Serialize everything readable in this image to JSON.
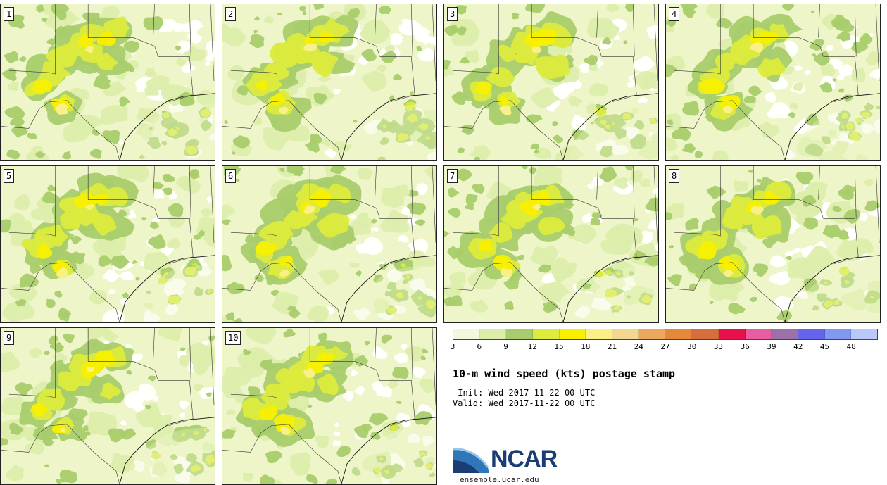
{
  "stamps": [
    {
      "label": "1"
    },
    {
      "label": "2"
    },
    {
      "label": "3"
    },
    {
      "label": "4"
    },
    {
      "label": "5"
    },
    {
      "label": "6"
    },
    {
      "label": "7"
    },
    {
      "label": "8"
    },
    {
      "label": "9"
    },
    {
      "label": "10"
    }
  ],
  "colorbar": {
    "colors": [
      "#f3f8dc",
      "#dcedaa",
      "#a8cc6c",
      "#dceb3c",
      "#f8f000",
      "#faf088",
      "#f3d690",
      "#eca85c",
      "#e6883c",
      "#d66e3c",
      "#e8104a",
      "#e85ca0",
      "#9c70aa",
      "#6464ec",
      "#8098f0",
      "#b8c8f8"
    ],
    "ticks": [
      "3",
      "6",
      "9",
      "12",
      "15",
      "18",
      "21",
      "24",
      "27",
      "30",
      "33",
      "36",
      "39",
      "42",
      "45",
      "48"
    ]
  },
  "title": "10-m wind speed (kts) postage stamp",
  "init_text": " Init: Wed 2017-11-22 00 UTC",
  "valid_text": "Valid: Wed 2017-11-22 00 UTC",
  "logo": {
    "text": "NCAR",
    "url": "ensemble.ucar.edu",
    "colors": {
      "dark": "#1a3d73",
      "mid": "#2f77b8",
      "light": "#9cc6e6"
    }
  }
}
